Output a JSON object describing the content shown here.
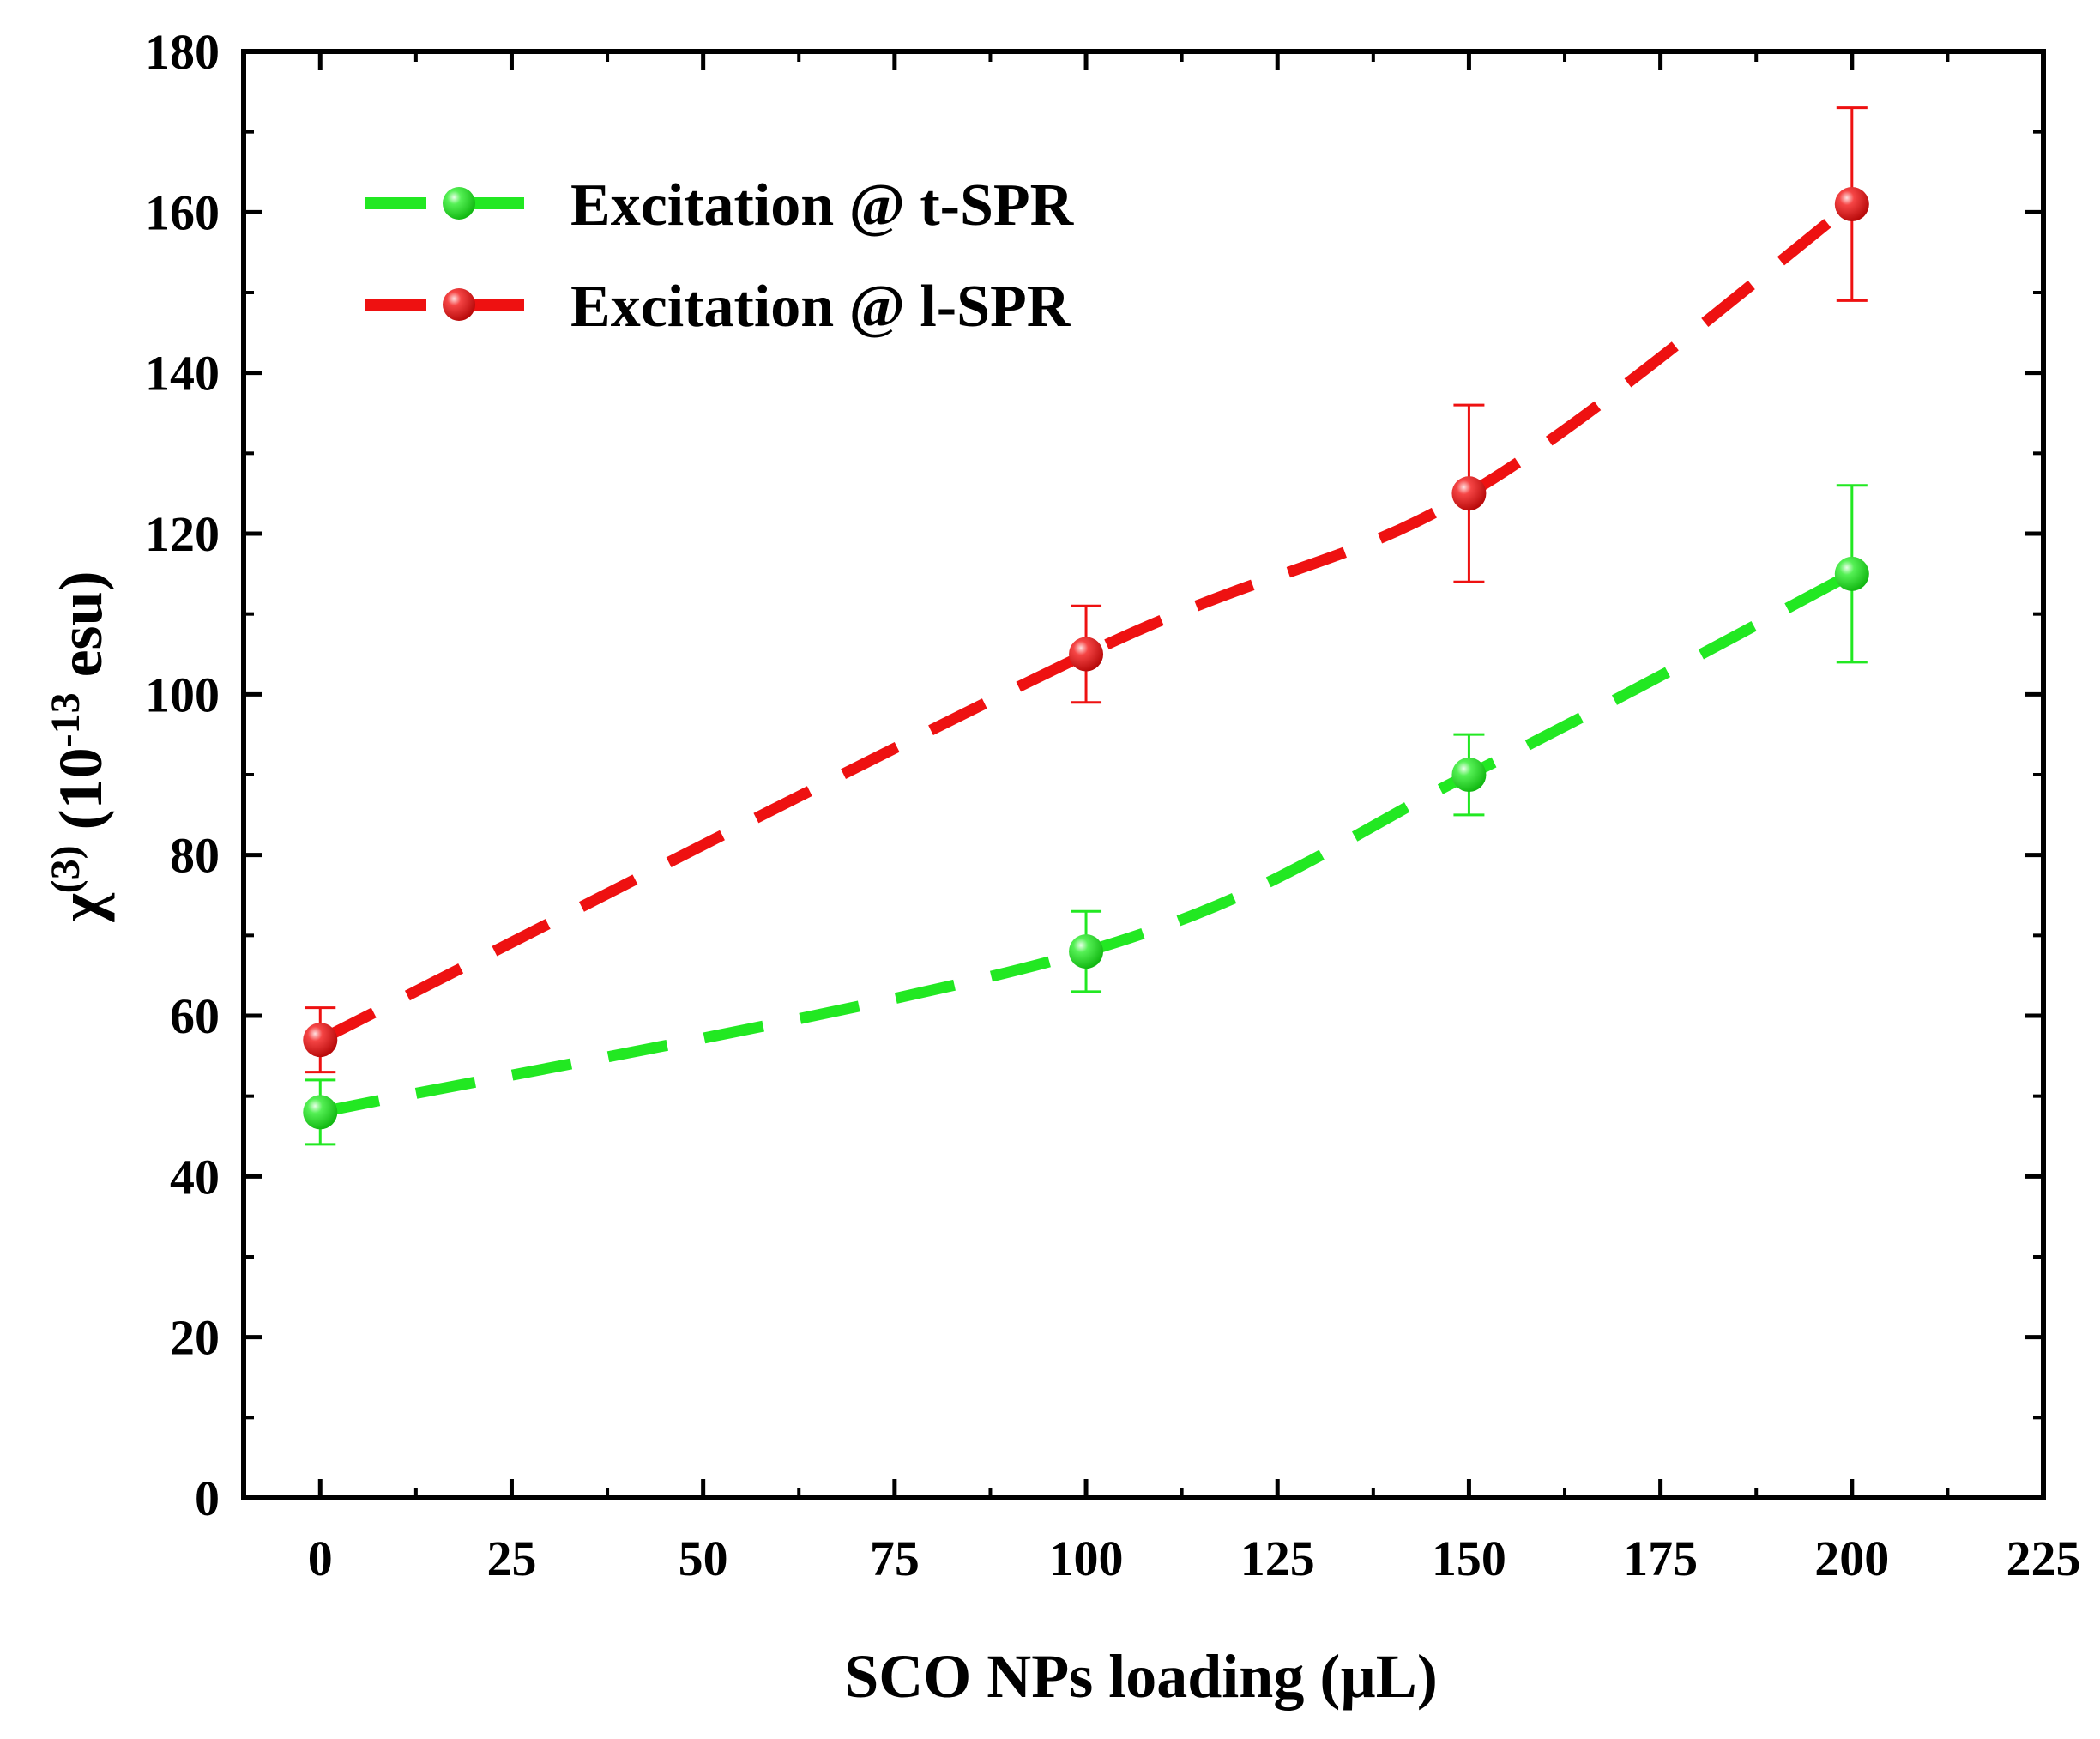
{
  "chart_data": {
    "type": "line",
    "title": "",
    "xlabel": "SCO NPs loading (µL)",
    "ylabel": {
      "symbol": "χ",
      "superscript": "(3)",
      "open": " (10",
      "exponent": "-13",
      "unit": " esu)"
    },
    "xlim": [
      -10,
      225
    ],
    "ylim": [
      0,
      180
    ],
    "x_ticks": [
      "0",
      "25",
      "50",
      "75",
      "100",
      "125",
      "150",
      "175",
      "200",
      "225"
    ],
    "y_ticks": [
      "0",
      "20",
      "40",
      "60",
      "80",
      "100",
      "120",
      "140",
      "160",
      "180"
    ],
    "x_tick_values": [
      0,
      25,
      50,
      75,
      100,
      125,
      150,
      175,
      200,
      225
    ],
    "y_tick_values": [
      0,
      20,
      40,
      60,
      80,
      100,
      120,
      140,
      160,
      180
    ],
    "legend_position": "top-left",
    "grid": false,
    "series": [
      {
        "name": "Excitation @ t-SPR",
        "color": "#22e822",
        "marker": "sphere",
        "line_style": "dashed",
        "x": [
          0,
          100,
          150,
          200
        ],
        "y": [
          48,
          68,
          90,
          115
        ],
        "y_err": [
          4,
          5,
          5,
          11
        ]
      },
      {
        "name": "Excitation @ l-SPR",
        "color": "#ee1111",
        "marker": "sphere",
        "line_style": "dashed",
        "x": [
          0,
          100,
          150,
          200
        ],
        "y": [
          57,
          105,
          125,
          161
        ],
        "y_err": [
          4,
          6,
          11,
          12
        ]
      }
    ]
  }
}
